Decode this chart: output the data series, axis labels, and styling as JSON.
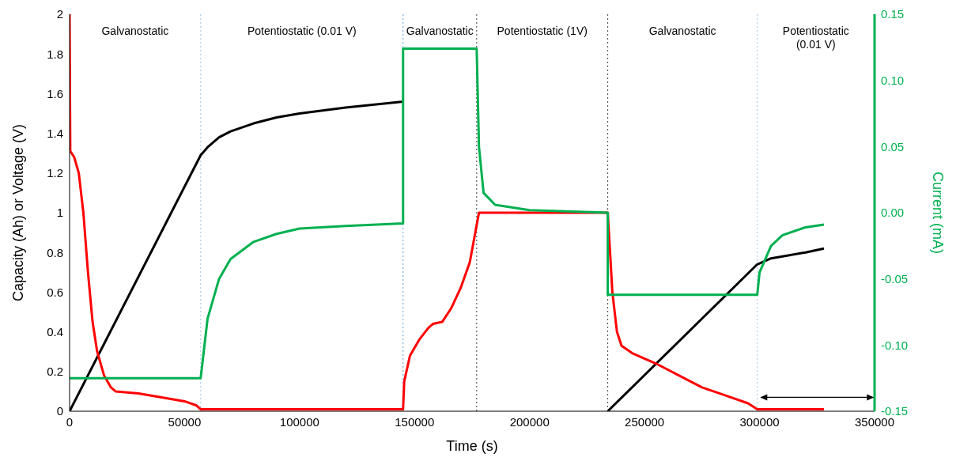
{
  "chart_data": {
    "type": "line",
    "xlabel": "Time (s)",
    "ylabel": "Capacity (Ah) or Voltage (V)",
    "y2label": "Current (mA)",
    "xlim": [
      0,
      350000
    ],
    "xticks": [
      0,
      50000,
      100000,
      150000,
      200000,
      250000,
      300000,
      350000
    ],
    "ylim": [
      0,
      2
    ],
    "yticks": [
      0,
      {
        "value": 0.2,
        "label": "0.2"
      },
      {
        "value": 0.4,
        "label": "0.4"
      },
      {
        "value": 0.6,
        "label": "0.6"
      },
      {
        "value": 0.8,
        "label": "0.8"
      },
      1,
      {
        "value": 1.2,
        "label": "1.2"
      },
      {
        "value": 1.4,
        "label": "1.4"
      },
      {
        "value": 1.6,
        "label": "1.6"
      },
      {
        "value": 1.8,
        "label": "1.8"
      },
      2
    ],
    "y2lim": [
      -0.15,
      0.15
    ],
    "y2ticks": [
      {
        "value": -0.15,
        "label": "-0.15"
      },
      {
        "value": -0.1,
        "label": "-0.10"
      },
      {
        "value": -0.05,
        "label": "-0.05"
      },
      {
        "value": 0,
        "label": "0.00"
      },
      {
        "value": 0.05,
        "label": "0.05"
      },
      {
        "value": 0.1,
        "label": "0.10"
      },
      {
        "value": 0.15,
        "label": "0.15"
      }
    ],
    "marker": "none",
    "line_style": "solid",
    "series": [
      {
        "color": "#000000",
        "x": [
          0,
          57000,
          60000,
          65000,
          70000,
          80000,
          90000,
          100000,
          120000,
          145000,
          null,
          234000,
          299000,
          305000,
          310000,
          320000,
          328000
        ],
        "values": [
          0,
          1.29,
          1.33,
          1.38,
          1.41,
          1.45,
          1.48,
          1.5,
          1.53,
          1.56,
          null,
          0,
          0.74,
          0.77,
          0.78,
          0.8,
          0.82
        ]
      },
      {
        "color": "#ff0000",
        "x": [
          0,
          300,
          2000,
          4000,
          6000,
          8000,
          10000,
          12000,
          15000,
          18000,
          20000,
          30000,
          40000,
          50000,
          55000,
          57000,
          145000,
          145500,
          148000,
          152000,
          156000,
          158000,
          162000,
          166000,
          170000,
          174000,
          178000,
          234000,
          236000,
          238000,
          240000,
          245000,
          255000,
          265000,
          275000,
          285000,
          295000,
          299000,
          328000
        ],
        "values": [
          2,
          1.31,
          1.28,
          1.2,
          1.0,
          0.7,
          0.45,
          0.3,
          0.18,
          0.12,
          0.1,
          0.09,
          0.07,
          0.05,
          0.03,
          0.01,
          0.01,
          0.15,
          0.28,
          0.36,
          0.42,
          0.44,
          0.45,
          0.52,
          0.62,
          0.75,
          1.0,
          1.0,
          0.6,
          0.4,
          0.33,
          0.29,
          0.24,
          0.18,
          0.12,
          0.08,
          0.04,
          0.01,
          0.01
        ]
      },
      {
        "color": "#00b050",
        "axis": "y2",
        "x": [
          0,
          57000,
          58000,
          60000,
          65000,
          70000,
          80000,
          90000,
          100000,
          120000,
          145000,
          145000,
          177000,
          178000,
          180000,
          185000,
          200000,
          234000,
          234000,
          299000,
          300000,
          305000,
          310000,
          320000,
          328000
        ],
        "values": [
          -0.125,
          -0.125,
          -0.11,
          -0.08,
          -0.05,
          -0.035,
          -0.022,
          -0.016,
          -0.012,
          -0.01,
          -0.008,
          0.124,
          0.124,
          0.05,
          0.015,
          0.006,
          0.002,
          0,
          -0.062,
          -0.062,
          -0.045,
          -0.025,
          -0.017,
          -0.011,
          -0.009
        ]
      }
    ],
    "ref_lines": [
      {
        "axis": "x",
        "value": 57000,
        "color": "#9dc3e6",
        "line_style": "dotted"
      },
      {
        "axis": "x",
        "value": 145000,
        "color": "#5b9bd5",
        "line_style": "dotted"
      },
      {
        "axis": "x",
        "value": 177000,
        "color": "#404040",
        "line_style": "dotted"
      },
      {
        "axis": "x",
        "value": 234000,
        "color": "#404040",
        "line_style": "dotted"
      },
      {
        "axis": "x",
        "value": 299000,
        "color": "#9dc3e6",
        "line_style": "dotted"
      }
    ],
    "annotations": [
      "Galvanostatic",
      "Potentiostatic (0.01 V)",
      "Galvanostatic",
      "Potentiostatic (1V)",
      "Galvanostatic",
      "Potentiostatic (0.01 V)"
    ]
  }
}
